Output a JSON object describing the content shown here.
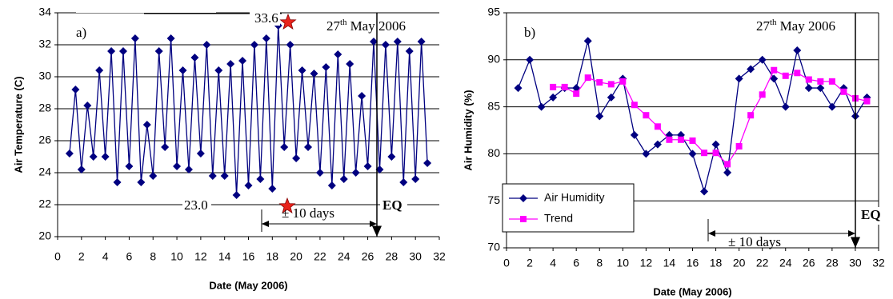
{
  "chart_data": [
    {
      "type": "line",
      "xlabel": "Date (May 2006)",
      "ylabel": "Air Temperature (C)",
      "annotations": {
        "panel": "a)",
        "max": "33.6",
        "min": "23.0",
        "date_day": "27",
        "date_sup": "th",
        "date_rest": "May 2006",
        "window": "± 10 days",
        "event": "EQ"
      },
      "xlim": [
        0,
        32
      ],
      "xticks": [
        0,
        2,
        4,
        6,
        8,
        10,
        12,
        14,
        16,
        18,
        20,
        22,
        24,
        26,
        28,
        30,
        32
      ],
      "ylim": [
        20,
        34
      ],
      "yticks": [
        20,
        22,
        24,
        26,
        28,
        30,
        32,
        34
      ],
      "grid": true,
      "x": [
        1,
        1.5,
        2,
        2.5,
        3,
        3.5,
        4,
        4.5,
        5,
        5.5,
        6,
        6.5,
        7,
        7.5,
        8,
        8.5,
        9,
        9.5,
        10,
        10.5,
        11,
        11.5,
        12,
        12.5,
        13,
        13.5,
        14,
        14.5,
        15,
        15.5,
        16,
        16.5,
        17,
        17.5,
        18,
        18.5,
        19,
        19.5,
        20,
        20.5,
        21,
        21.5,
        22,
        22.5,
        23,
        23.5,
        24,
        24.5,
        25,
        25.5,
        26,
        26.5,
        27,
        27.5,
        28,
        28.5,
        29,
        29.5,
        30,
        30.5,
        31
      ],
      "series": [
        {
          "color": "#000080",
          "marker": "diamond",
          "values": [
            25.2,
            29.2,
            24.2,
            28.2,
            25.0,
            30.4,
            25.0,
            31.6,
            23.4,
            31.6,
            24.4,
            32.4,
            23.4,
            27.0,
            23.8,
            31.6,
            25.6,
            32.4,
            24.4,
            30.4,
            24.2,
            31.2,
            25.2,
            32.0,
            23.8,
            30.4,
            23.8,
            30.8,
            22.6,
            31.0,
            23.2,
            32.0,
            23.6,
            32.4,
            23.0,
            33.2,
            25.6,
            32.0,
            24.9,
            30.4,
            25.6,
            30.2,
            24.0,
            30.6,
            23.2,
            31.4,
            23.6,
            30.8,
            24.0,
            28.8,
            24.4,
            32.2,
            24.2,
            32.0,
            25.0,
            32.2,
            23.4,
            31.6,
            23.6,
            32.2,
            24.6
          ]
        }
      ]
    },
    {
      "type": "line",
      "xlabel": "Date (May 2006)",
      "ylabel": "Air Humidity (%)",
      "annotations": {
        "panel": "b)",
        "date_day": "27",
        "date_sup": "th",
        "date_rest": "May 2006",
        "window": "± 10 days",
        "event": "EQ"
      },
      "xlim": [
        0,
        32
      ],
      "xticks": [
        0,
        2,
        4,
        6,
        8,
        10,
        12,
        14,
        16,
        18,
        20,
        22,
        24,
        26,
        28,
        30,
        32
      ],
      "ylim": [
        70,
        95
      ],
      "yticks": [
        70,
        75,
        80,
        85,
        90,
        95
      ],
      "grid": true,
      "legend": "lower left",
      "x": [
        1,
        2,
        3,
        4,
        5,
        6,
        7,
        8,
        9,
        10,
        11,
        12,
        13,
        14,
        15,
        16,
        17,
        18,
        19,
        20,
        21,
        22,
        23,
        24,
        25,
        26,
        27,
        28,
        29,
        30,
        31
      ],
      "series": [
        {
          "name": "Air Humidity",
          "color": "#000080",
          "marker": "diamond",
          "values": [
            87,
            90,
            85,
            86,
            87,
            87,
            92,
            84,
            86,
            88,
            82,
            80,
            81,
            82,
            82,
            80,
            76,
            81,
            78,
            88,
            89,
            90,
            88,
            85,
            91,
            87,
            87,
            85,
            87,
            84,
            86
          ]
        },
        {
          "name": "Trend",
          "color": "#ff00ff",
          "marker": "square",
          "values": [
            null,
            null,
            null,
            87.1,
            87.1,
            86.4,
            88.1,
            87.6,
            87.4,
            87.7,
            85.2,
            84.1,
            82.9,
            81.5,
            81.5,
            81.4,
            80.1,
            80.1,
            78.9,
            80.8,
            84.1,
            86.3,
            88.9,
            88.3,
            88.6,
            87.9,
            87.7,
            87.7,
            86.6,
            85.9,
            85.6
          ]
        }
      ]
    }
  ]
}
